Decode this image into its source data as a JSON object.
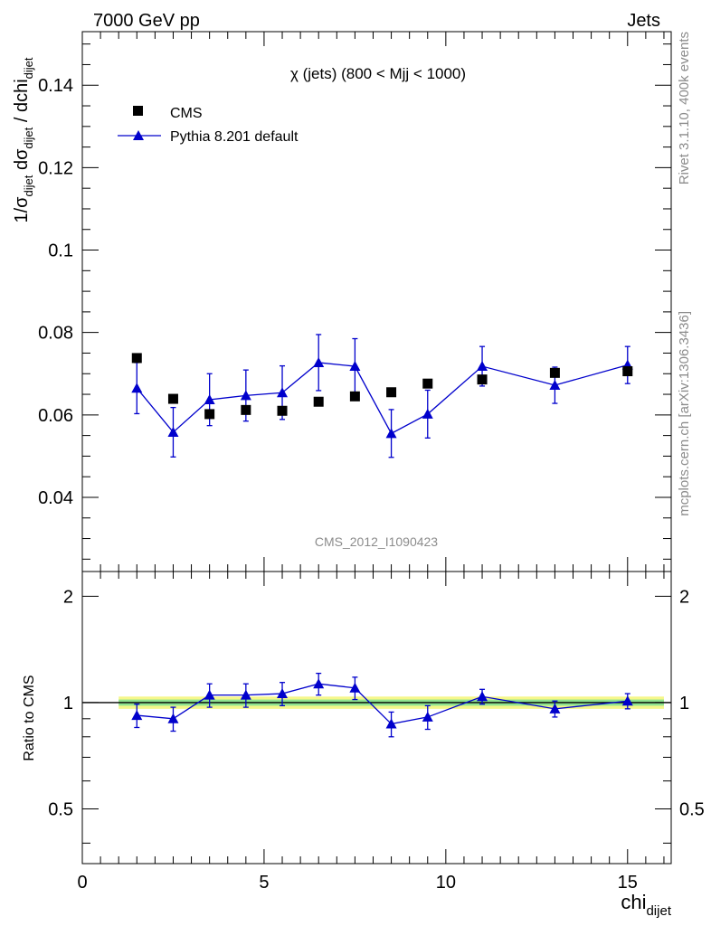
{
  "header": {
    "left": "7000 GeV pp",
    "right": "Jets"
  },
  "side_labels": {
    "rivet": "Rivet 3.1.10,  400k events",
    "mcplots": "mcplots.cern.ch [arXiv:1306.3436]"
  },
  "chart_data": [
    {
      "type": "scatter",
      "title": "χ (jets) (800 < Mjj < 1000)",
      "watermark": "CMS_2012_I1090423",
      "ylabel_main": "1/σ",
      "ylabel_sub": "dijet",
      "ylabel_mid": " dσ",
      "ylabel_mid_sub": "dijet",
      "ylabel_end": " / dchi",
      "ylabel_end_sub": "dijet",
      "xlim": [
        0,
        16.2
      ],
      "ylim": [
        0.022,
        0.153
      ],
      "yticks": [
        0.04,
        0.06,
        0.08,
        0.1,
        0.12,
        0.14
      ],
      "ytick_labels": [
        "0.04",
        "0.06",
        "0.08",
        "0.1",
        "0.12",
        "0.14"
      ],
      "series": [
        {
          "name": "CMS",
          "marker": "square",
          "color": "#000000",
          "x": [
            1.5,
            2.5,
            3.5,
            4.5,
            5.5,
            6.5,
            7.5,
            8.5,
            9.5,
            11,
            13,
            15
          ],
          "y": [
            0.0738,
            0.0639,
            0.0602,
            0.0612,
            0.061,
            0.0632,
            0.0645,
            0.0655,
            0.0676,
            0.0686,
            0.0702,
            0.0706
          ],
          "yerr": [
            0.0012,
            0.001,
            0.001,
            0.001,
            0.001,
            0.001,
            0.001,
            0.001,
            0.001,
            0.0012,
            0.0012,
            0.0015
          ]
        },
        {
          "name": "Pythia 8.201 default",
          "marker": "triangle",
          "color": "#0000cc",
          "x": [
            1.5,
            2.5,
            3.5,
            4.5,
            5.5,
            6.5,
            7.5,
            8.5,
            9.5,
            11,
            13,
            15
          ],
          "y": [
            0.0665,
            0.0558,
            0.0637,
            0.0647,
            0.0654,
            0.0727,
            0.0718,
            0.0555,
            0.0602,
            0.0718,
            0.0672,
            0.0721
          ],
          "yerr": [
            0.0062,
            0.006,
            0.0063,
            0.0062,
            0.0065,
            0.0068,
            0.0067,
            0.0058,
            0.0058,
            0.0048,
            0.0044,
            0.0045
          ]
        }
      ]
    },
    {
      "type": "scatter",
      "ylabel": "Ratio to CMS",
      "xlabel": "chi",
      "xlabel_sub": "dijet",
      "xlim": [
        0,
        16.2
      ],
      "ylim": [
        0.35,
        2.35
      ],
      "xticks": [
        0,
        5,
        10,
        15
      ],
      "xtick_labels": [
        "0",
        "5",
        "10",
        "15"
      ],
      "yticks": [
        0.5,
        1,
        2
      ],
      "ytick_labels": [
        "0.5",
        "1",
        "2"
      ],
      "band": {
        "x": [
          1,
          16
        ],
        "yellow": [
          0.96,
          1.04
        ],
        "green": [
          0.98,
          1.02
        ]
      },
      "series": [
        {
          "name": "Pythia 8.201 default",
          "color": "#0000cc",
          "x": [
            1.5,
            2.5,
            3.5,
            4.5,
            5.5,
            6.5,
            7.5,
            8.5,
            9.5,
            11,
            13,
            15
          ],
          "y": [
            0.92,
            0.9,
            1.05,
            1.05,
            1.06,
            1.13,
            1.1,
            0.87,
            0.91,
            1.04,
            0.96,
            1.01
          ],
          "yerr": [
            0.07,
            0.07,
            0.08,
            0.08,
            0.08,
            0.08,
            0.08,
            0.07,
            0.07,
            0.05,
            0.05,
            0.05
          ]
        }
      ]
    }
  ]
}
